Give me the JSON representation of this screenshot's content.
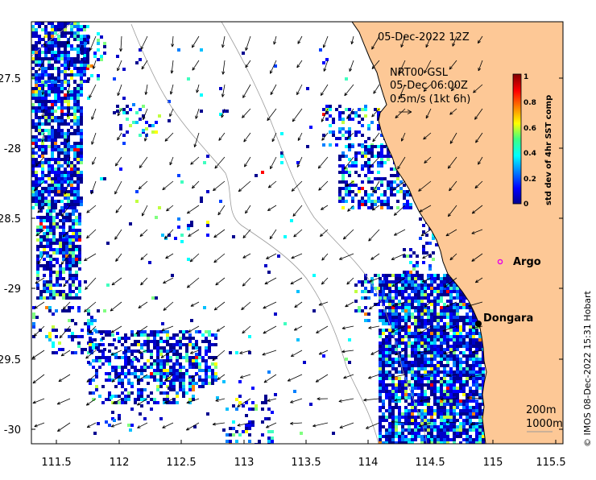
{
  "map": {
    "timestamp": "05-Dec-2022 12Z",
    "current_source": {
      "line1": "NRT00 GSL",
      "line2": "05-Dec 06:00Z",
      "line3": "0.5m/s (1kt 6h)"
    },
    "lon_ticks": [
      "111.5",
      "112",
      "112.5",
      "113",
      "113.5",
      "114",
      "114.5",
      "115",
      "115.5"
    ],
    "lat_ticks": [
      "-27.5",
      "-28",
      "-28.5",
      "-29",
      "-29.5",
      "-30"
    ],
    "places": [
      {
        "name": "Argo",
        "lon": 115.05,
        "lat": -28.83,
        "marker": "circle",
        "color": "#e600e6"
      },
      {
        "name": "Dongara",
        "lon": 114.92,
        "lat": -29.25,
        "marker": "dot",
        "color": "#000000"
      }
    ],
    "colorbar": {
      "title": "std dev of 4hr SST comp",
      "ticks": [
        "1",
        "0.8",
        "0.6",
        "0.4",
        "0.2",
        "0"
      ]
    },
    "isobaths": {
      "line1": "200m",
      "line2": "1000m"
    },
    "credit": "© IMOS 08-Dec-2022 15:31 Hobart",
    "colors": {
      "land": "#fdc896",
      "ocean": "#ffffff",
      "coast": "#000000",
      "isobath": "#9a9a9a"
    }
  }
}
